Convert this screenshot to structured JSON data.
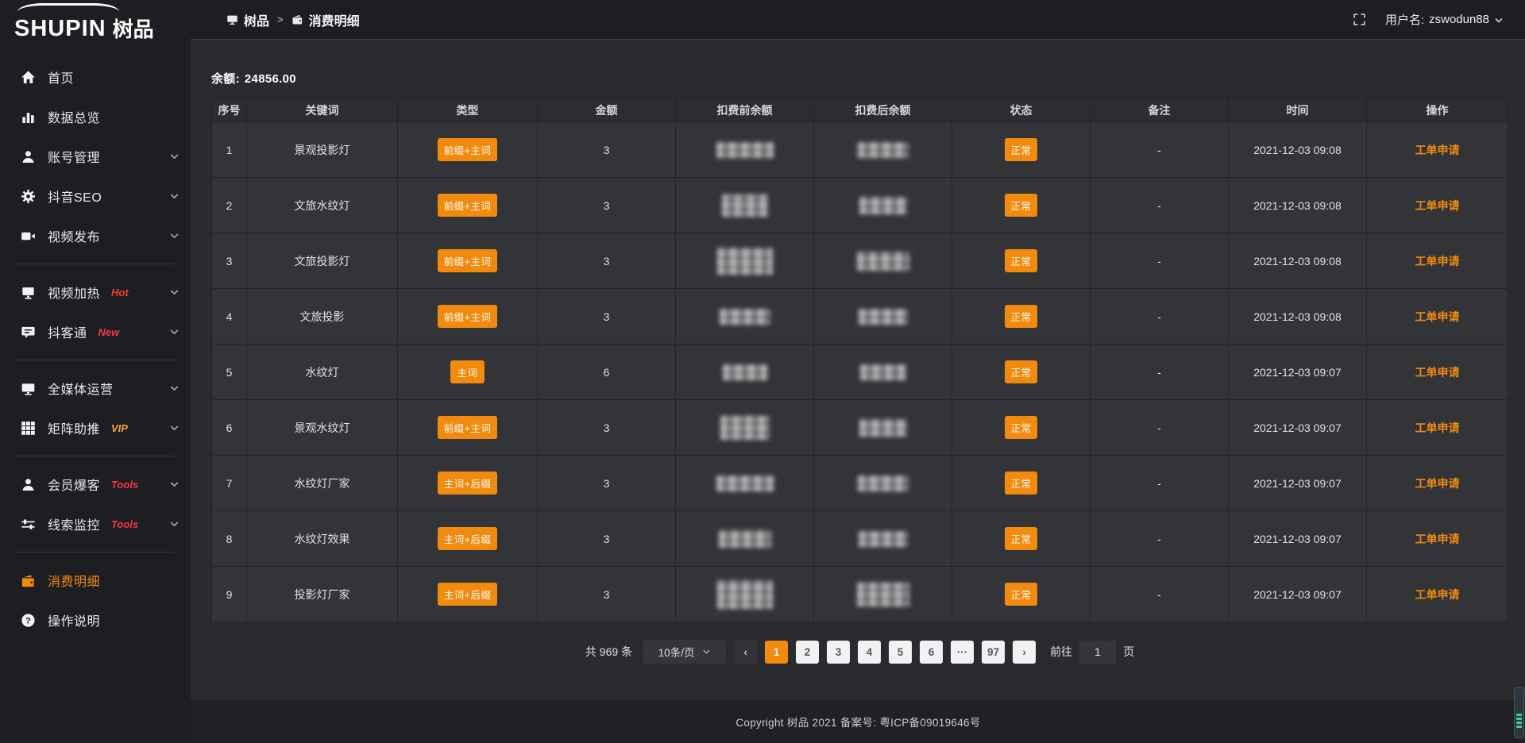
{
  "app": {
    "accent_orange": "#f28a0d",
    "badge_red": "#f5393d",
    "badge_gold": "#f2a33c"
  },
  "sidebar": {
    "logo_en": "SHUPIN",
    "logo_cn": "树品",
    "groups": [
      {
        "items": [
          {
            "key": "home",
            "icon": "home-icon",
            "label": "首页"
          },
          {
            "key": "data-overview",
            "icon": "bar-chart-icon",
            "label": "数据总览"
          },
          {
            "key": "account-management",
            "icon": "user-icon",
            "label": "账号管理",
            "chevron": true
          },
          {
            "key": "douyin-seo",
            "icon": "gear-icon",
            "label": "抖音SEO",
            "chevron": true
          },
          {
            "key": "video-publish",
            "icon": "video-camera-icon",
            "label": "视频发布",
            "chevron": true
          }
        ]
      },
      {
        "items": [
          {
            "key": "video-heat",
            "icon": "screen-icon",
            "label": "视频加热",
            "badge": "Hot",
            "badge_color": "#f5393d",
            "chevron": true
          },
          {
            "key": "douketong",
            "icon": "chat-icon",
            "label": "抖客通",
            "badge": "New",
            "badge_color": "#f5393d",
            "chevron": true
          }
        ]
      },
      {
        "items": [
          {
            "key": "media-operation",
            "icon": "monitor-icon",
            "label": "全媒体运营",
            "chevron": true
          },
          {
            "key": "matrix-boost",
            "icon": "grid-icon",
            "label": "矩阵助推",
            "badge": "VIP",
            "badge_color": "#f2a33c",
            "chevron": true
          }
        ]
      },
      {
        "items": [
          {
            "key": "member-baoke",
            "icon": "user-icon",
            "label": "会员爆客",
            "badge": "Tools",
            "badge_color": "#f5393d",
            "chevron": true
          },
          {
            "key": "leads-monitor",
            "icon": "sliders-icon",
            "label": "线索监控",
            "badge": "Tools",
            "badge_color": "#f5393d",
            "chevron": true
          }
        ]
      },
      {
        "items": [
          {
            "key": "consumption-detail",
            "icon": "wallet-icon",
            "label": "消费明细",
            "active": true
          },
          {
            "key": "instructions",
            "icon": "question-icon",
            "label": "操作说明"
          }
        ]
      }
    ]
  },
  "topbar": {
    "breadcrumb": [
      {
        "label": "树品",
        "icon": "monitor-icon"
      },
      {
        "label": "消费明细",
        "icon": "wallet-icon"
      }
    ],
    "username_label": "用户名:",
    "username": "zswodun88"
  },
  "main": {
    "balance_label": "余额:",
    "balance_value": "24856.00"
  },
  "table": {
    "headers": [
      "序号",
      "关键词",
      "类型",
      "金额",
      "扣费前余额",
      "扣费后余额",
      "状态",
      "备注",
      "时间",
      "操作"
    ],
    "rows": [
      {
        "index": "1",
        "keyword": "景观投影灯",
        "type": "前缀+主词",
        "amount": "3",
        "status": "正常",
        "remark": "-",
        "time": "2021-12-03 09:08",
        "action": "工单申请"
      },
      {
        "index": "2",
        "keyword": "文旅水纹灯",
        "type": "前缀+主词",
        "amount": "3",
        "status": "正常",
        "remark": "-",
        "time": "2021-12-03 09:08",
        "action": "工单申请"
      },
      {
        "index": "3",
        "keyword": "文旅投影灯",
        "type": "前缀+主词",
        "amount": "3",
        "status": "正常",
        "remark": "-",
        "time": "2021-12-03 09:08",
        "action": "工单申请"
      },
      {
        "index": "4",
        "keyword": "文旅投影",
        "type": "前缀+主词",
        "amount": "3",
        "status": "正常",
        "remark": "-",
        "time": "2021-12-03 09:08",
        "action": "工单申请"
      },
      {
        "index": "5",
        "keyword": "水纹灯",
        "type": "主词",
        "amount": "6",
        "status": "正常",
        "remark": "-",
        "time": "2021-12-03 09:07",
        "action": "工单申请"
      },
      {
        "index": "6",
        "keyword": "景观水纹灯",
        "type": "前缀+主词",
        "amount": "3",
        "status": "正常",
        "remark": "-",
        "time": "2021-12-03 09:07",
        "action": "工单申请"
      },
      {
        "index": "7",
        "keyword": "水纹灯厂家",
        "type": "主词+后缀",
        "amount": "3",
        "status": "正常",
        "remark": "-",
        "time": "2021-12-03 09:07",
        "action": "工单申请"
      },
      {
        "index": "8",
        "keyword": "水纹灯效果",
        "type": "主词+后缀",
        "amount": "3",
        "status": "正常",
        "remark": "-",
        "time": "2021-12-03 09:07",
        "action": "工单申请"
      },
      {
        "index": "9",
        "keyword": "投影灯厂家",
        "type": "主词+后缀",
        "amount": "3",
        "status": "正常",
        "remark": "-",
        "time": "2021-12-03 09:07",
        "action": "工单申请"
      }
    ]
  },
  "pagination": {
    "total": "共 969 条",
    "page_size": "10条/页",
    "prev": "‹",
    "pages": [
      "1",
      "2",
      "3",
      "4",
      "5",
      "6",
      "···",
      "97"
    ],
    "active_page": "1",
    "next": "›",
    "goto_label": "前往",
    "goto_value": "1",
    "goto_suffix": "页"
  },
  "footer": {
    "copyright": "Copyright 树品 2021 备案号: 粤ICP备09019646号"
  }
}
